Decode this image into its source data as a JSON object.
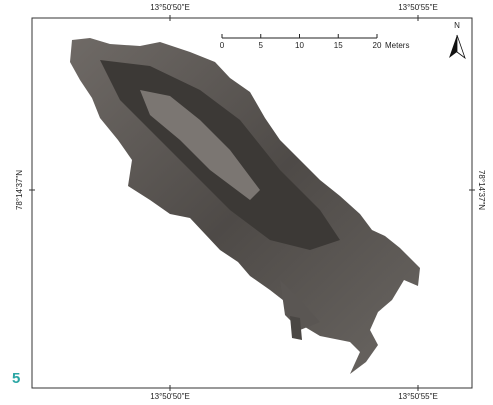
{
  "map": {
    "figure_number": "5",
    "top_labels": [
      "13°50'50\"E",
      "13°50'55\"E"
    ],
    "bottom_labels": [
      "13°50'50\"E",
      "13°50'55\"E"
    ],
    "left_label": "78°14'37\"N",
    "right_label": "78°14'37\"N",
    "north": "N",
    "scale_bar": {
      "ticks": [
        0,
        5,
        10,
        15,
        20
      ],
      "unit": "Meters"
    }
  }
}
